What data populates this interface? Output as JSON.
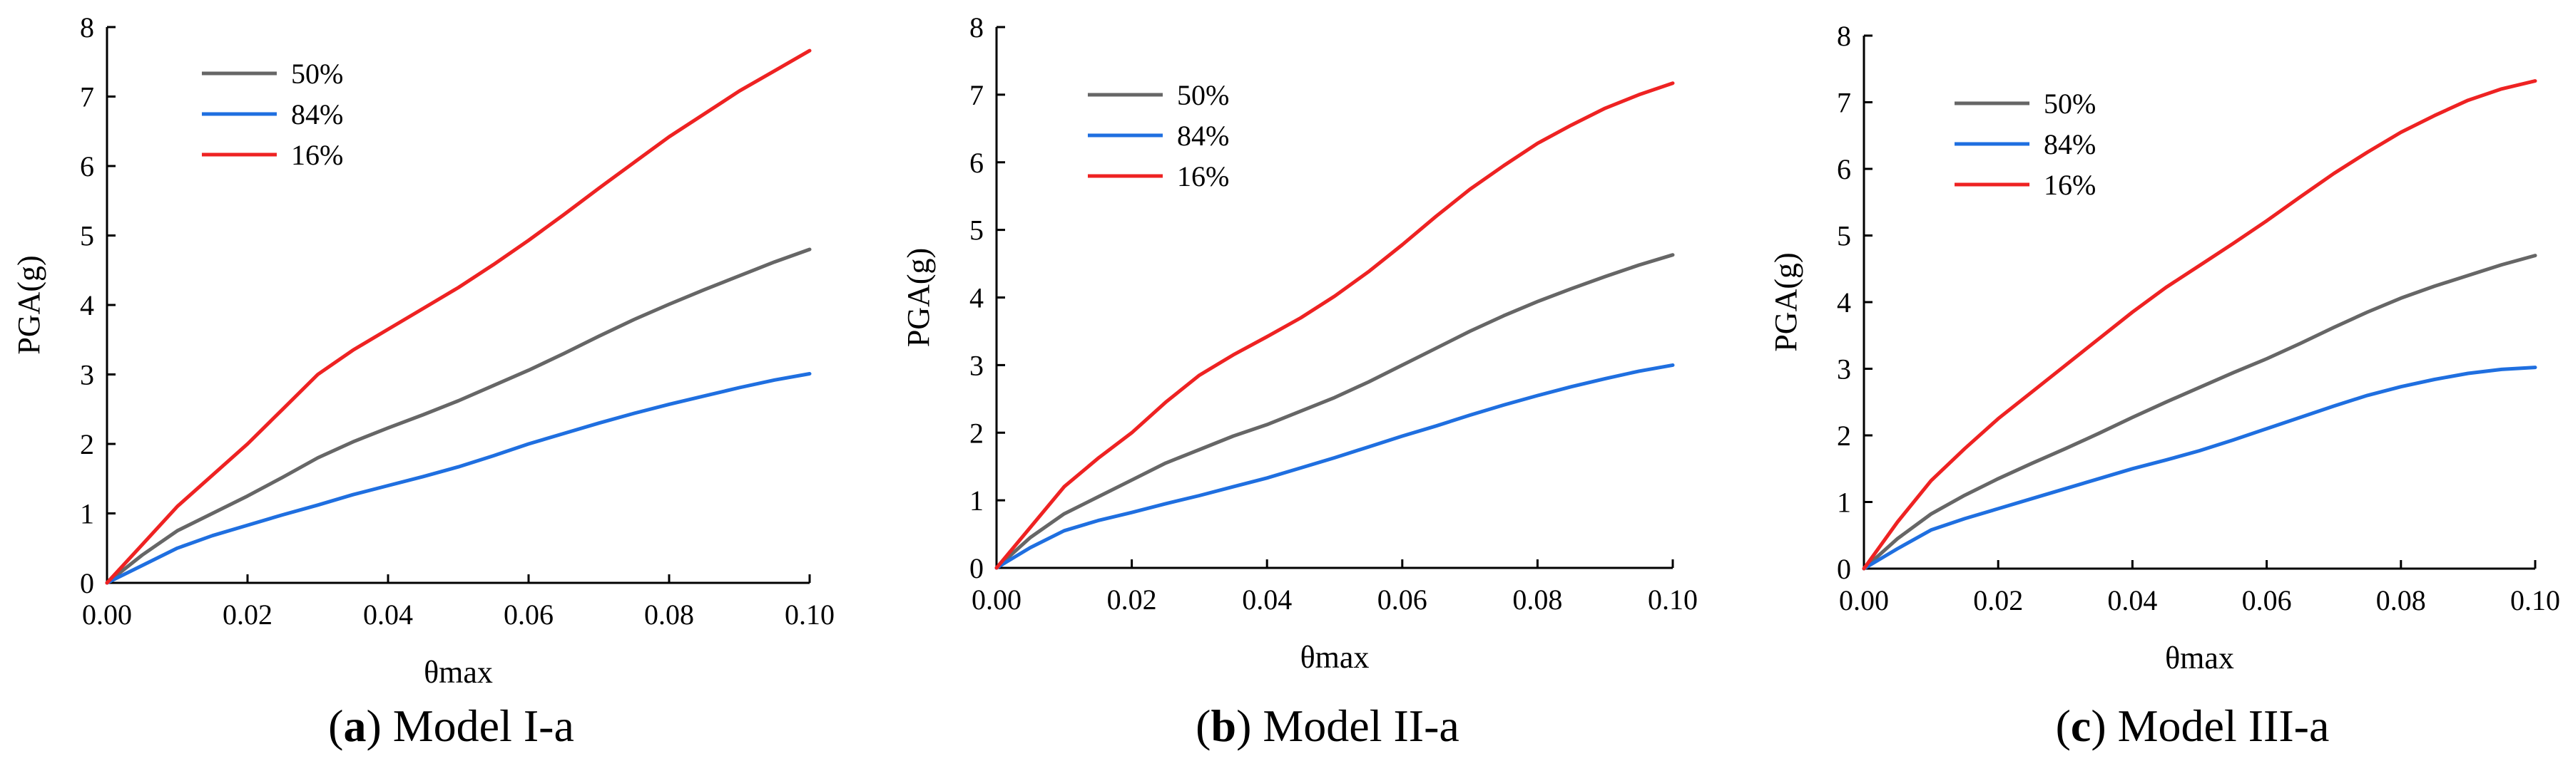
{
  "chart_data": [
    {
      "type": "line",
      "caption_letter": "a",
      "caption_text": ") Model I-a",
      "caption_open": "(",
      "xlabel": "θmax",
      "ylabel": "PGA(g)",
      "xlim": [
        0,
        0.1
      ],
      "ylim": [
        0,
        8
      ],
      "xticks": [
        "0.00",
        "0.02",
        "0.04",
        "0.06",
        "0.08",
        "0.10"
      ],
      "yticks": [
        "0",
        "1",
        "2",
        "3",
        "4",
        "5",
        "6",
        "7",
        "8"
      ],
      "x": [
        0,
        0.005,
        0.01,
        0.015,
        0.02,
        0.025,
        0.03,
        0.035,
        0.04,
        0.045,
        0.05,
        0.055,
        0.06,
        0.065,
        0.07,
        0.075,
        0.08,
        0.085,
        0.09,
        0.095,
        0.1
      ],
      "series": [
        {
          "name": "50%",
          "color": "#666666",
          "values": [
            0,
            0.4,
            0.75,
            1.0,
            1.25,
            1.52,
            1.8,
            2.03,
            2.23,
            2.42,
            2.62,
            2.84,
            3.06,
            3.3,
            3.55,
            3.79,
            4.01,
            4.22,
            4.42,
            4.62,
            4.8
          ]
        },
        {
          "name": "84%",
          "color": "#1f6fe0",
          "values": [
            0,
            0.25,
            0.5,
            0.68,
            0.83,
            0.98,
            1.12,
            1.27,
            1.4,
            1.53,
            1.67,
            1.83,
            2.0,
            2.15,
            2.3,
            2.44,
            2.57,
            2.69,
            2.81,
            2.92,
            3.01
          ]
        },
        {
          "name": "16%",
          "color": "#ee2222",
          "values": [
            0,
            0.55,
            1.1,
            1.55,
            2.0,
            2.5,
            3.0,
            3.35,
            3.65,
            3.95,
            4.25,
            4.58,
            4.93,
            5.3,
            5.68,
            6.05,
            6.42,
            6.75,
            7.08,
            7.37,
            7.66
          ]
        }
      ]
    },
    {
      "type": "line",
      "caption_letter": "b",
      "caption_text": ") Model II-a",
      "caption_open": "(",
      "xlabel": "θmax",
      "ylabel": "PGA(g)",
      "xlim": [
        0,
        0.1
      ],
      "ylim": [
        0,
        8
      ],
      "xticks": [
        "0.00",
        "0.02",
        "0.04",
        "0.06",
        "0.08",
        "0.10"
      ],
      "yticks": [
        "0",
        "1",
        "2",
        "3",
        "4",
        "5",
        "6",
        "7",
        "8"
      ],
      "x": [
        0,
        0.005,
        0.01,
        0.015,
        0.02,
        0.025,
        0.03,
        0.035,
        0.04,
        0.045,
        0.05,
        0.055,
        0.06,
        0.065,
        0.07,
        0.075,
        0.08,
        0.085,
        0.09,
        0.095,
        0.1
      ],
      "series": [
        {
          "name": "50%",
          "color": "#666666",
          "values": [
            0,
            0.45,
            0.8,
            1.05,
            1.3,
            1.55,
            1.75,
            1.95,
            2.12,
            2.32,
            2.52,
            2.75,
            3.0,
            3.25,
            3.5,
            3.73,
            3.94,
            4.13,
            4.31,
            4.48,
            4.63
          ]
        },
        {
          "name": "84%",
          "color": "#1f6fe0",
          "values": [
            0,
            0.3,
            0.55,
            0.7,
            0.82,
            0.95,
            1.07,
            1.2,
            1.33,
            1.48,
            1.63,
            1.79,
            1.95,
            2.1,
            2.26,
            2.41,
            2.55,
            2.68,
            2.8,
            2.91,
            3.0
          ]
        },
        {
          "name": "16%",
          "color": "#ee2222",
          "values": [
            0,
            0.6,
            1.2,
            1.62,
            2.0,
            2.45,
            2.85,
            3.15,
            3.42,
            3.7,
            4.02,
            4.38,
            4.78,
            5.2,
            5.6,
            5.95,
            6.28,
            6.55,
            6.8,
            7.0,
            7.17
          ]
        }
      ]
    },
    {
      "type": "line",
      "caption_letter": "c",
      "caption_text": ") Model III-a",
      "caption_open": "(",
      "xlabel": "θmax",
      "ylabel": "PGA(g)",
      "xlim": [
        0,
        0.1
      ],
      "ylim": [
        0,
        8
      ],
      "xticks": [
        "0.00",
        "0.02",
        "0.04",
        "0.06",
        "0.08",
        "0.10"
      ],
      "yticks": [
        "0",
        "1",
        "2",
        "3",
        "4",
        "5",
        "6",
        "7",
        "8"
      ],
      "x": [
        0,
        0.005,
        0.01,
        0.015,
        0.02,
        0.025,
        0.03,
        0.035,
        0.04,
        0.045,
        0.05,
        0.055,
        0.06,
        0.065,
        0.07,
        0.075,
        0.08,
        0.085,
        0.09,
        0.095,
        0.1
      ],
      "series": [
        {
          "name": "50%",
          "color": "#666666",
          "values": [
            0,
            0.45,
            0.82,
            1.1,
            1.35,
            1.58,
            1.8,
            2.03,
            2.27,
            2.5,
            2.72,
            2.94,
            3.15,
            3.38,
            3.62,
            3.85,
            4.06,
            4.24,
            4.4,
            4.56,
            4.7
          ]
        },
        {
          "name": "84%",
          "color": "#1f6fe0",
          "values": [
            0,
            0.3,
            0.58,
            0.75,
            0.9,
            1.05,
            1.2,
            1.35,
            1.5,
            1.63,
            1.77,
            1.93,
            2.1,
            2.27,
            2.44,
            2.6,
            2.73,
            2.84,
            2.93,
            2.99,
            3.02
          ]
        },
        {
          "name": "16%",
          "color": "#ee2222",
          "values": [
            0,
            0.7,
            1.32,
            1.8,
            2.25,
            2.65,
            3.05,
            3.45,
            3.85,
            4.22,
            4.55,
            4.88,
            5.22,
            5.58,
            5.93,
            6.25,
            6.55,
            6.8,
            7.03,
            7.2,
            7.32
          ]
        }
      ]
    }
  ]
}
